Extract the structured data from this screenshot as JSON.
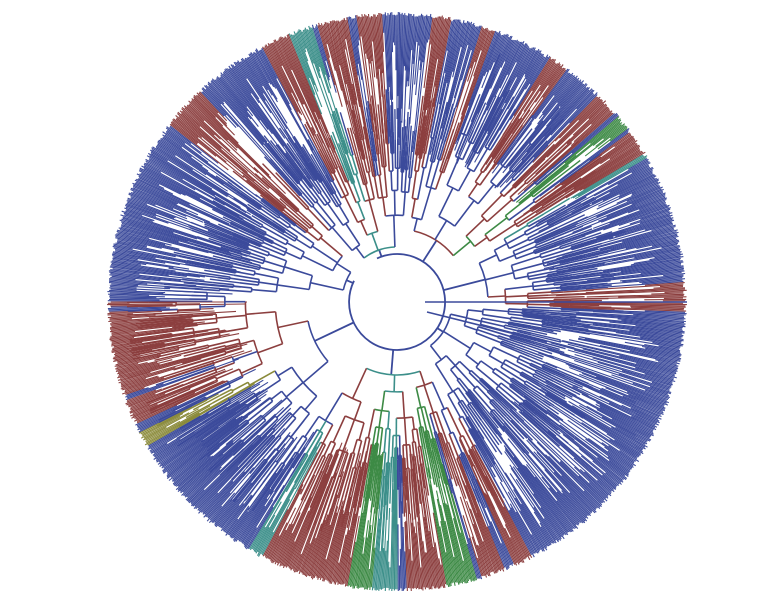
{
  "figure": {
    "type": "circular-phylogenetic-tree",
    "background_color": "#ffffff",
    "clade_colors": {
      "blue": "#3b4a9b",
      "red": "#8c3f3f",
      "green": "#3d8a45",
      "teal": "#3c8f8a",
      "olive": "#8a8a3a"
    }
  }
}
